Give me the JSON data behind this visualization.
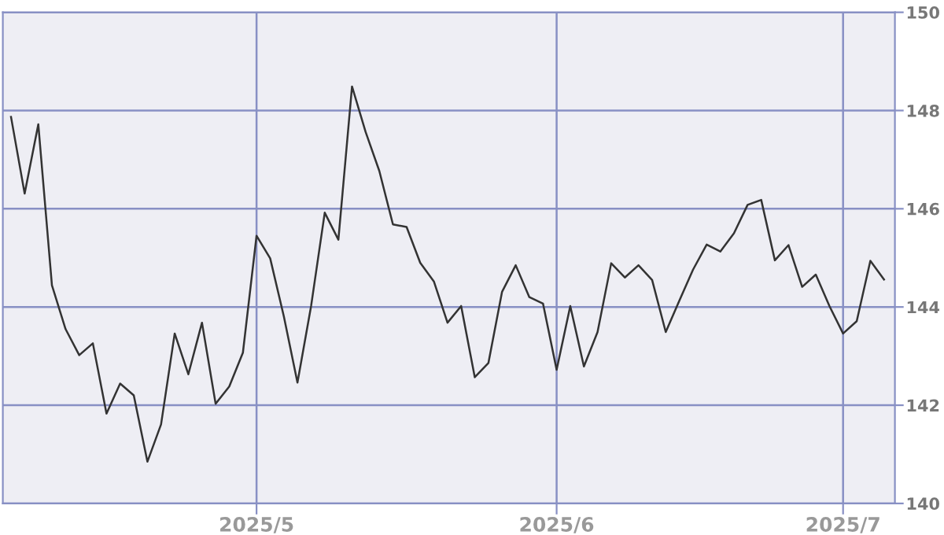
{
  "chart_data": {
    "type": "line",
    "categories": [
      null,
      null,
      null,
      null,
      null,
      null,
      null,
      null,
      null,
      null,
      null,
      null,
      null,
      null,
      null,
      null,
      null,
      null,
      "2025/5",
      null,
      null,
      null,
      null,
      null,
      null,
      null,
      null,
      null,
      null,
      null,
      null,
      null,
      null,
      null,
      null,
      null,
      null,
      null,
      null,
      null,
      "2025/6",
      null,
      null,
      null,
      null,
      null,
      null,
      null,
      null,
      null,
      null,
      null,
      null,
      null,
      null,
      null,
      null,
      null,
      null,
      null,
      null,
      "2025/7",
      null,
      null,
      null
    ],
    "series": [
      {
        "color": "#333333",
        "values": [
          147.87,
          146.31,
          147.72,
          144.44,
          143.55,
          143.02,
          143.26,
          141.83,
          142.44,
          142.2,
          140.85,
          141.61,
          143.46,
          142.63,
          143.68,
          142.03,
          142.38,
          143.07,
          145.45,
          144.99,
          143.81,
          142.46,
          144.02,
          145.92,
          145.37,
          148.49,
          147.56,
          146.77,
          145.68,
          145.63,
          144.9,
          144.52,
          143.68,
          144.02,
          142.57,
          142.86,
          144.31,
          144.85,
          144.2,
          144.07,
          142.72,
          144.02,
          142.79,
          143.49,
          144.89,
          144.6,
          144.85,
          144.55,
          143.49,
          144.13,
          144.76,
          145.27,
          145.13,
          145.5,
          146.08,
          146.18,
          144.95,
          145.26,
          144.41,
          144.66,
          144.02,
          143.46,
          143.71,
          144.94,
          144.56
        ]
      }
    ],
    "ylim": [
      140,
      150
    ],
    "yticks": [
      140,
      142,
      144,
      146,
      148,
      150
    ],
    "grid": true,
    "marker": "none",
    "line_style": "solid"
  }
}
